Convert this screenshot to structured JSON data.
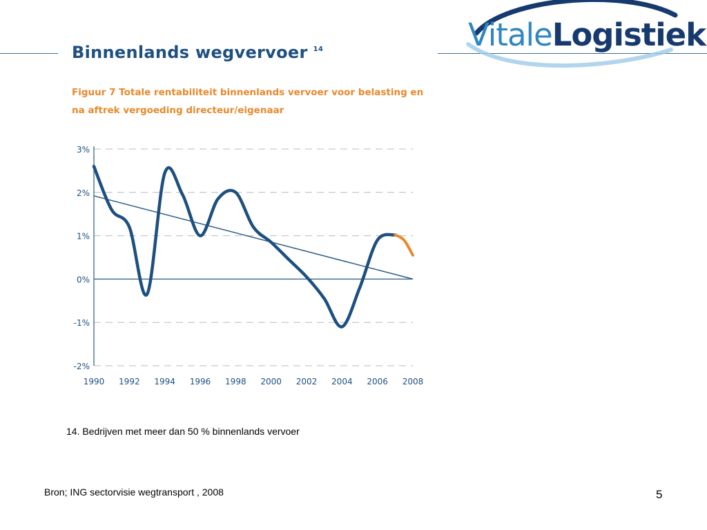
{
  "header": {
    "logo_part1": "Vitale",
    "logo_part2": "Logistiek",
    "title": "Binnenlands wegvervoer",
    "title_ref": "14",
    "figure_caption": "Figuur 7 Totale rentabiliteit binnenlands vervoer voor belasting en na aftrek vergoeding directeur/eigenaar"
  },
  "footnote": "14. Bedrijven met meer dan 50 % binnenlands vervoer",
  "source": "Bron; ING sectorvisie wegtransport , 2008",
  "page_number": "5",
  "colors": {
    "main_line": "#1d4f80",
    "forecast_line": "#e8892b",
    "trend_line": "#2a5a86",
    "grid": "#b4bcc6",
    "title": "#1d4f80",
    "caption": "#e8892b"
  },
  "chart_data": {
    "type": "line",
    "title": "Figuur 7 Totale rentabiliteit binnenlands vervoer voor belasting en na aftrek vergoeding directeur/eigenaar",
    "xlabel": "",
    "ylabel": "",
    "x_ticks": [
      "1990",
      "1992",
      "1994",
      "1996",
      "1998",
      "2000",
      "2002",
      "2004",
      "2006",
      "2008"
    ],
    "y_ticks": [
      "3%",
      "2%",
      "1%",
      "0%",
      "-1%",
      "-2%"
    ],
    "xlim": [
      1990,
      2008
    ],
    "ylim": [
      -2,
      3
    ],
    "grid": "horizontal dashed",
    "series": [
      {
        "values": [
          [
            1990,
            2.6
          ],
          [
            1991,
            1.6
          ],
          [
            1992,
            1.2
          ],
          [
            1993,
            -0.35
          ],
          [
            1994,
            2.45
          ],
          [
            1995,
            1.95
          ],
          [
            1996,
            1.0
          ],
          [
            1997,
            1.85
          ],
          [
            1998,
            2.0
          ],
          [
            1999,
            1.2
          ],
          [
            2000,
            0.85
          ],
          [
            2001,
            0.45
          ],
          [
            2002,
            0.05
          ],
          [
            2003,
            -0.45
          ],
          [
            2004,
            -1.1
          ],
          [
            2005,
            -0.2
          ],
          [
            2006,
            0.9
          ],
          [
            2007,
            1.02
          ]
        ]
      },
      {
        "values": [
          [
            2007,
            1.02
          ],
          [
            2007.5,
            0.9
          ],
          [
            2008,
            0.55
          ]
        ]
      },
      {
        "values": [
          [
            1990,
            1.92
          ],
          [
            2008,
            0.0
          ]
        ]
      }
    ]
  }
}
